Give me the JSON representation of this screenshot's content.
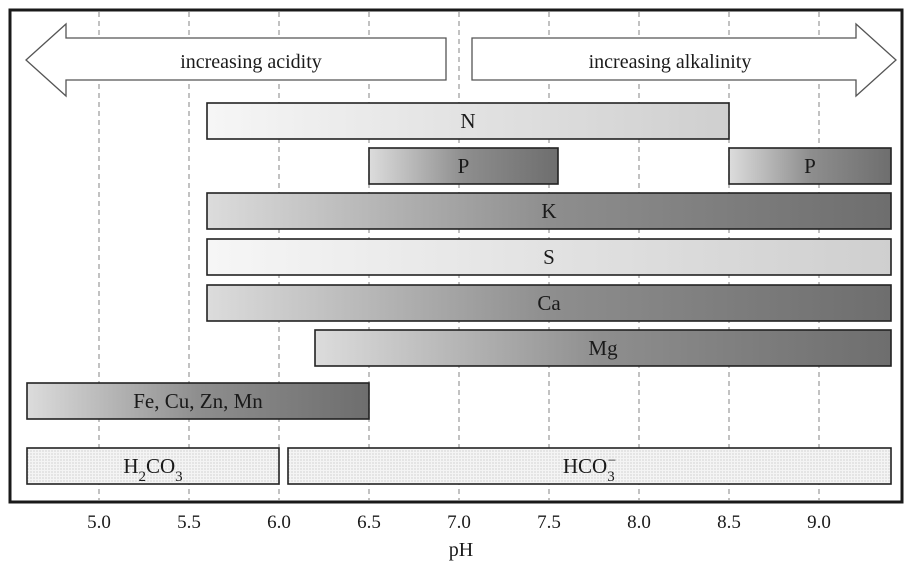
{
  "chart_data": {
    "type": "bar",
    "subtype": "horizontal-range",
    "xlabel": "pH",
    "xlim": [
      4.6,
      9.4
    ],
    "x_ticks": [
      "5.0",
      "5.5",
      "6.0",
      "6.5",
      "7.0",
      "7.5",
      "8.0",
      "8.5",
      "9.0"
    ],
    "grid": "vertical dashed lines at each tick",
    "arrows": [
      {
        "label": "increasing acidity",
        "direction": "left",
        "from": 7.0,
        "to": 4.6
      },
      {
        "label": "increasing alkalinity",
        "direction": "right",
        "from": 7.0,
        "to": 9.4
      }
    ],
    "ranges": [
      {
        "label": "N",
        "start": 5.6,
        "end": 8.5,
        "style": "light"
      },
      {
        "label": "P",
        "start": 6.5,
        "end": 7.55,
        "style": "dark"
      },
      {
        "label": "P",
        "start": 8.5,
        "end": 9.4,
        "style": "dark",
        "row": 1
      },
      {
        "label": "K",
        "start": 5.6,
        "end": 9.4,
        "style": "dark"
      },
      {
        "label": "S",
        "start": 5.6,
        "end": 9.4,
        "style": "light"
      },
      {
        "label": "Ca",
        "start": 5.6,
        "end": 9.4,
        "style": "dark"
      },
      {
        "label": "Mg",
        "start": 6.2,
        "end": 9.4,
        "style": "dark"
      },
      {
        "label": "Fe, Cu, Zn, Mn",
        "start": 4.6,
        "end": 6.5,
        "style": "dark"
      },
      {
        "label": "H2CO3",
        "start": 4.6,
        "end": 6.0,
        "style": "dotted"
      },
      {
        "label": "HCO3−",
        "start": 6.05,
        "end": 9.4,
        "style": "dotted"
      }
    ]
  }
}
